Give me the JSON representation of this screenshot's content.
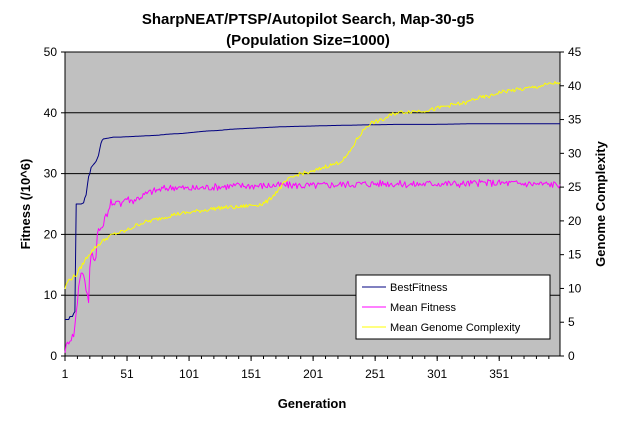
{
  "chart_data": {
    "type": "line",
    "title": "SharpNEAT/PTSP/Autopilot Search, Map-30-g5",
    "subtitle": "(Population Size=1000)",
    "xlabel": "Generation",
    "ylabel": "Fitness (/10^6)",
    "y2label": "Genome Complexity",
    "xlim": [
      1,
      400
    ],
    "ylim": [
      0,
      50
    ],
    "y2lim": [
      0,
      45
    ],
    "x_ticks": [
      1,
      51,
      101,
      151,
      201,
      251,
      301,
      351
    ],
    "y_ticks": [
      0,
      10,
      20,
      30,
      40,
      50
    ],
    "y2_ticks": [
      0,
      5,
      10,
      15,
      20,
      25,
      30,
      35,
      40,
      45
    ],
    "plot_background": "#c0c0c0",
    "grid": true,
    "legend_position": "bottom-right",
    "series": [
      {
        "name": "BestFitness",
        "axis": "left",
        "color": "#000080",
        "points": [
          [
            1,
            6
          ],
          [
            4,
            6
          ],
          [
            5,
            6.5
          ],
          [
            7,
            6.5
          ],
          [
            8,
            7
          ],
          [
            9,
            7.3
          ],
          [
            10,
            25
          ],
          [
            14,
            25
          ],
          [
            16,
            25.2
          ],
          [
            17,
            26
          ],
          [
            18,
            26.5
          ],
          [
            19,
            28
          ],
          [
            20,
            29.5
          ],
          [
            21,
            30
          ],
          [
            22,
            31
          ],
          [
            24,
            31.5
          ],
          [
            26,
            32
          ],
          [
            28,
            33
          ],
          [
            29,
            34
          ],
          [
            30,
            35
          ],
          [
            31,
            35.5
          ],
          [
            32,
            35.7
          ],
          [
            35,
            35.8
          ],
          [
            40,
            36
          ],
          [
            45,
            36
          ],
          [
            55,
            36.1
          ],
          [
            65,
            36.2
          ],
          [
            75,
            36.3
          ],
          [
            85,
            36.5
          ],
          [
            95,
            36.6
          ],
          [
            105,
            36.8
          ],
          [
            115,
            37
          ],
          [
            125,
            37.1
          ],
          [
            135,
            37.3
          ],
          [
            145,
            37.4
          ],
          [
            155,
            37.5
          ],
          [
            175,
            37.7
          ],
          [
            195,
            37.8
          ],
          [
            215,
            37.9
          ],
          [
            240,
            38
          ],
          [
            270,
            38.1
          ],
          [
            300,
            38.1
          ],
          [
            330,
            38.2
          ],
          [
            370,
            38.2
          ],
          [
            400,
            38.2
          ]
        ]
      },
      {
        "name": "Mean Fitness",
        "axis": "left",
        "color": "#ff00ff",
        "points": [
          [
            1,
            1
          ],
          [
            2,
            1.5
          ],
          [
            4,
            2.5
          ],
          [
            6,
            3
          ],
          [
            8,
            3.5
          ],
          [
            9,
            5
          ],
          [
            10,
            7
          ],
          [
            11,
            9
          ],
          [
            12,
            11.5
          ],
          [
            13,
            13
          ],
          [
            14,
            13.5
          ],
          [
            15,
            14
          ],
          [
            16,
            13
          ],
          [
            17,
            12
          ],
          [
            18,
            11
          ],
          [
            19,
            10
          ],
          [
            20,
            9
          ],
          [
            21,
            15
          ],
          [
            22,
            16.5
          ],
          [
            23,
            17
          ],
          [
            24,
            16.5
          ],
          [
            25,
            15.5
          ],
          [
            26,
            16
          ],
          [
            27,
            20
          ],
          [
            28,
            21
          ],
          [
            30,
            20.5
          ],
          [
            32,
            22
          ],
          [
            34,
            23
          ],
          [
            36,
            24
          ],
          [
            38,
            25.5
          ],
          [
            40,
            24.5
          ],
          [
            42,
            25
          ],
          [
            44,
            26
          ],
          [
            46,
            25
          ],
          [
            48,
            25.5
          ],
          [
            50,
            26
          ],
          [
            55,
            25.5
          ],
          [
            60,
            26
          ],
          [
            65,
            26.5
          ],
          [
            70,
            27
          ],
          [
            80,
            27.5
          ],
          [
            90,
            27.8
          ],
          [
            100,
            27.5
          ],
          [
            120,
            27.8
          ],
          [
            140,
            28
          ],
          [
            160,
            28
          ],
          [
            180,
            28.1
          ],
          [
            200,
            28
          ],
          [
            220,
            28.2
          ],
          [
            240,
            28.3
          ],
          [
            260,
            28.4
          ],
          [
            280,
            28.2
          ],
          [
            300,
            28.4
          ],
          [
            320,
            28.3
          ],
          [
            340,
            28.5
          ],
          [
            360,
            28.4
          ],
          [
            380,
            28.3
          ],
          [
            400,
            28.2
          ]
        ]
      },
      {
        "name": "Mean Genome Complexity",
        "axis": "right",
        "color": "#ffff00",
        "points": [
          [
            1,
            10
          ],
          [
            3,
            11
          ],
          [
            6,
            11.5
          ],
          [
            10,
            12
          ],
          [
            15,
            13.5
          ],
          [
            20,
            15
          ],
          [
            25,
            16
          ],
          [
            30,
            16.8
          ],
          [
            35,
            17.5
          ],
          [
            40,
            18
          ],
          [
            45,
            18.3
          ],
          [
            50,
            18.5
          ],
          [
            55,
            19
          ],
          [
            60,
            19.5
          ],
          [
            65,
            19.8
          ],
          [
            70,
            20
          ],
          [
            80,
            20.5
          ],
          [
            90,
            21
          ],
          [
            100,
            21.2
          ],
          [
            110,
            21.5
          ],
          [
            120,
            21.8
          ],
          [
            130,
            22
          ],
          [
            140,
            22
          ],
          [
            150,
            22.3
          ],
          [
            160,
            22.5
          ],
          [
            165,
            23
          ],
          [
            170,
            24
          ],
          [
            175,
            25
          ],
          [
            180,
            26
          ],
          [
            185,
            26.5
          ],
          [
            190,
            27
          ],
          [
            200,
            27.2
          ],
          [
            210,
            28
          ],
          [
            220,
            28.5
          ],
          [
            225,
            29
          ],
          [
            230,
            30
          ],
          [
            233,
            31
          ],
          [
            236,
            32
          ],
          [
            240,
            33
          ],
          [
            244,
            34
          ],
          [
            248,
            34.5
          ],
          [
            252,
            34.7
          ],
          [
            258,
            35
          ],
          [
            262,
            35.5
          ],
          [
            268,
            36
          ],
          [
            278,
            36.2
          ],
          [
            288,
            36.3
          ],
          [
            298,
            36.5
          ],
          [
            308,
            37
          ],
          [
            318,
            37.3
          ],
          [
            325,
            37.5
          ],
          [
            330,
            38
          ],
          [
            338,
            38.3
          ],
          [
            345,
            38.5
          ],
          [
            350,
            39
          ],
          [
            360,
            39.3
          ],
          [
            370,
            39.5
          ],
          [
            380,
            39.8
          ],
          [
            390,
            40.2
          ],
          [
            400,
            40.5
          ]
        ]
      }
    ]
  }
}
